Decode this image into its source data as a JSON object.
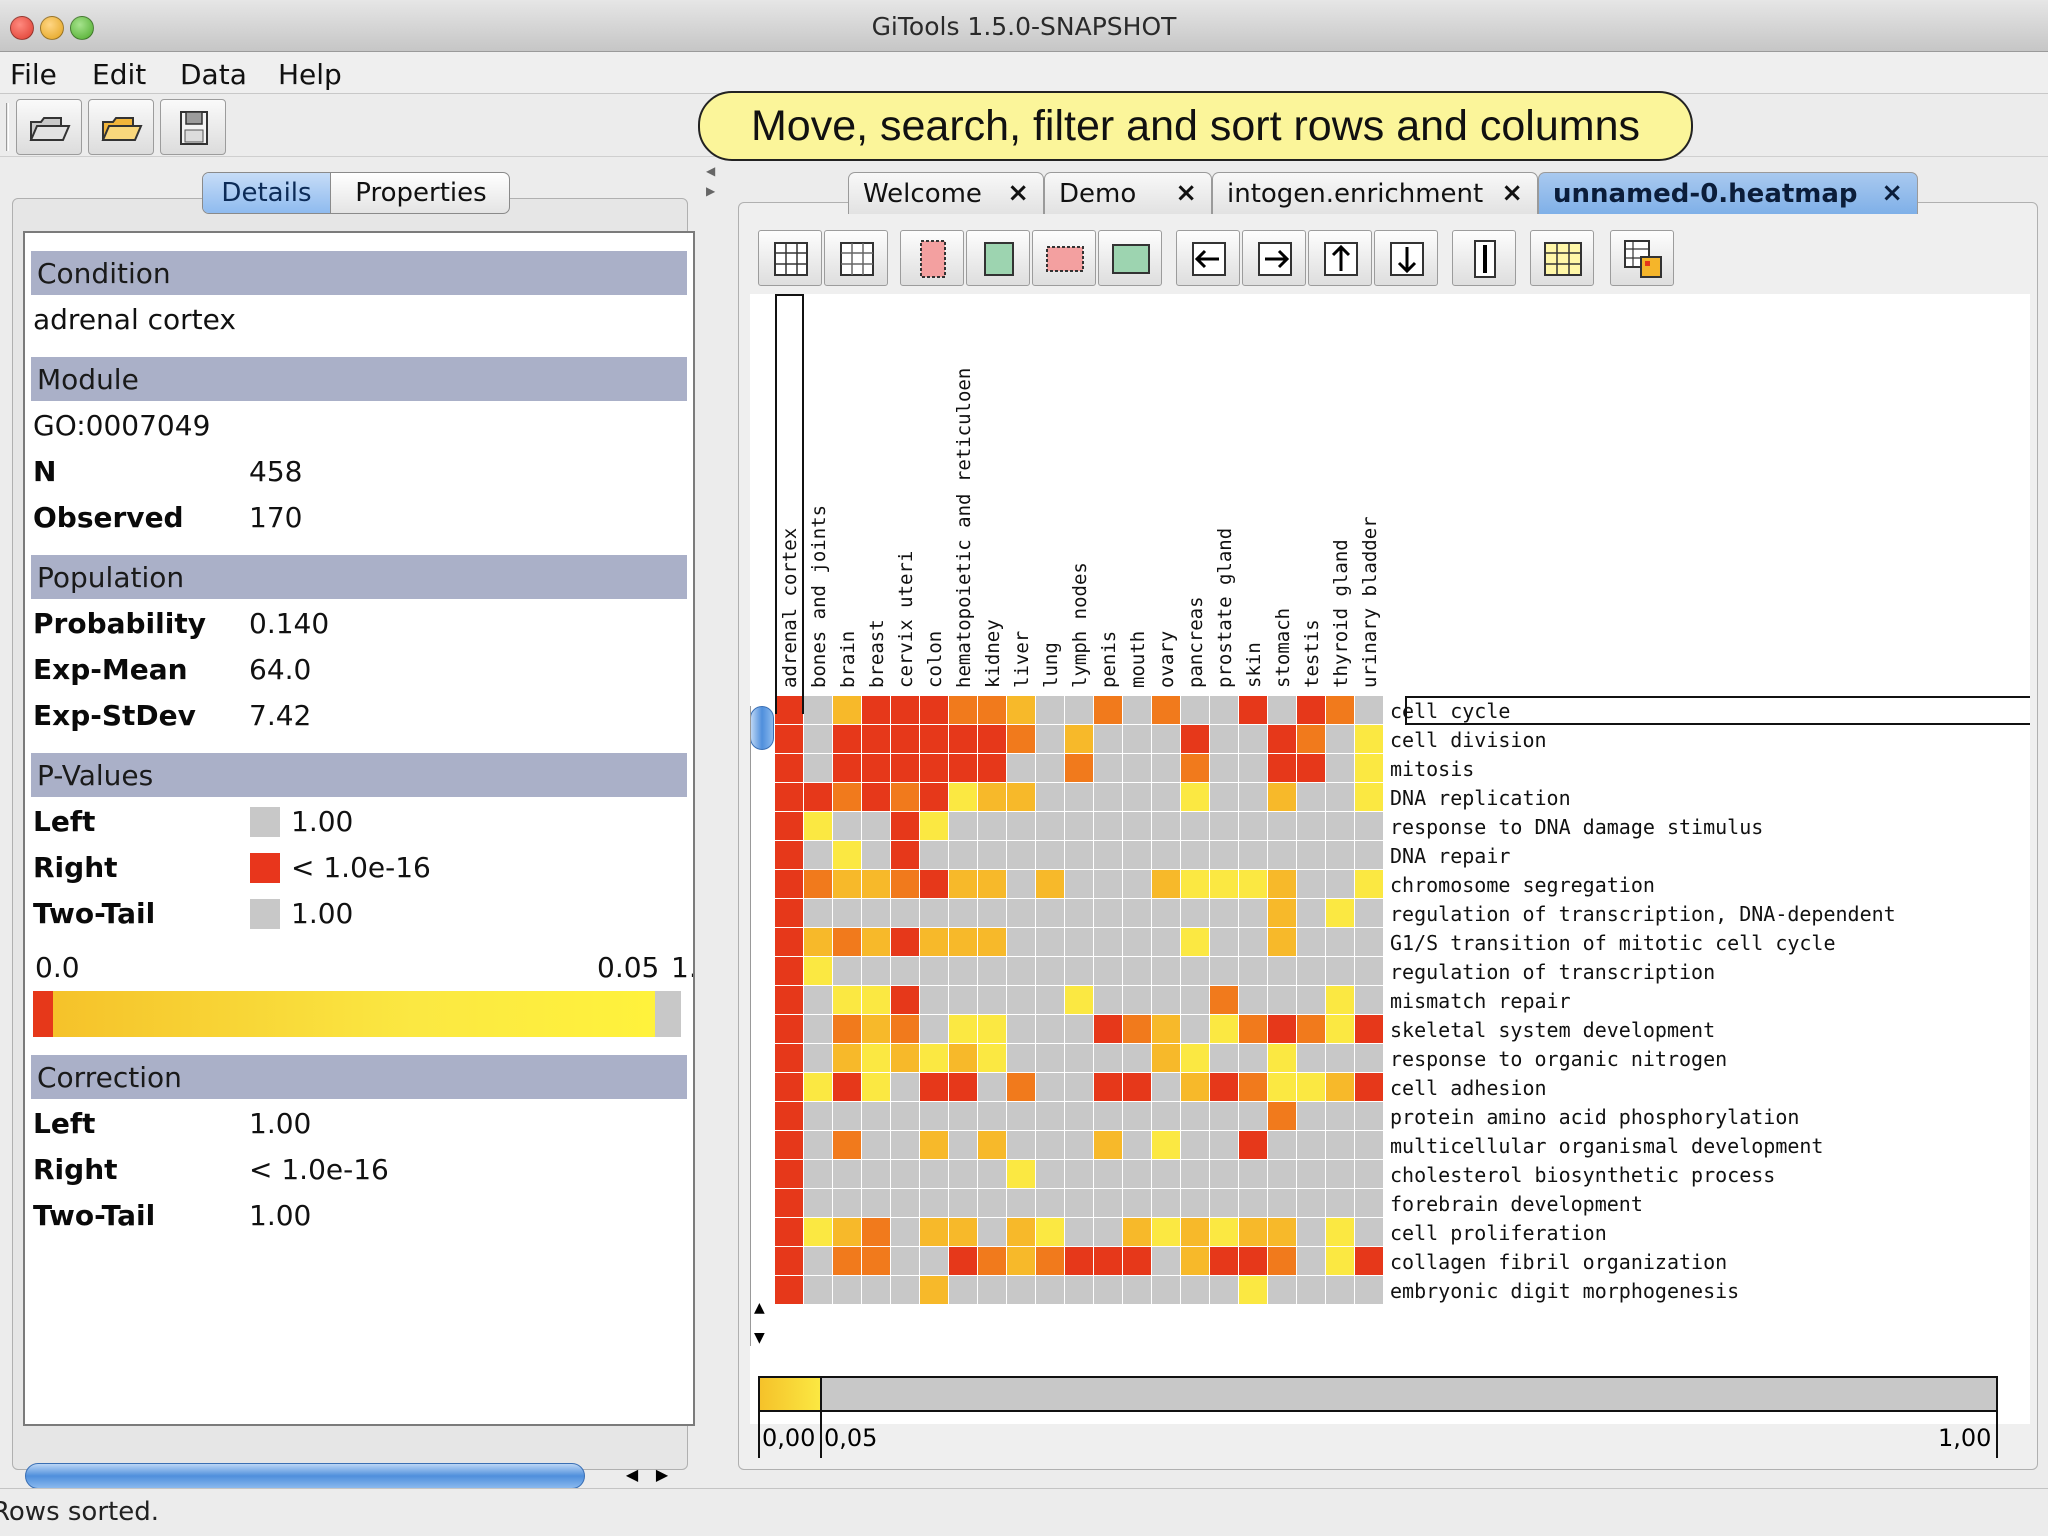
{
  "window": {
    "title": "GiTools 1.5.0-SNAPSHOT"
  },
  "menu": [
    "File",
    "Edit",
    "Data",
    "Help"
  ],
  "callout": "Move, search, filter and sort rows and columns",
  "left_tabs": {
    "details": "Details",
    "properties": "Properties",
    "selected": "Details"
  },
  "details": {
    "condition_header": "Condition",
    "condition_value": "adrenal cortex",
    "module_header": "Module",
    "module_value": "GO:0007049",
    "module_props": [
      {
        "label": "N",
        "value": "458"
      },
      {
        "label": "Observed",
        "value": "170"
      }
    ],
    "population_header": "Population",
    "population_props": [
      {
        "label": "Probability",
        "value": "0.140"
      },
      {
        "label": "Exp-Mean",
        "value": "64.0"
      },
      {
        "label": "Exp-StDev",
        "value": "7.42"
      }
    ],
    "pvalues_header": "P-Values",
    "pvalues_props": [
      {
        "label": "Left",
        "value": "1.00",
        "swatch": "#c8c8c8"
      },
      {
        "label": "Right",
        "value": "< 1.0e-16",
        "swatch": "#e8361c"
      },
      {
        "label": "Two-Tail",
        "value": "1.00",
        "swatch": "#c8c8c8"
      }
    ],
    "scale_min": "0.0",
    "scale_mid": "0.05",
    "scale_max": "1.",
    "correction_header": "Correction",
    "correction_props": [
      {
        "label": "Left",
        "value": "1.00"
      },
      {
        "label": "Right",
        "value": "< 1.0e-16"
      },
      {
        "label": "Two-Tail",
        "value": "1.00"
      }
    ]
  },
  "tabs": [
    {
      "label": "Welcome",
      "active": false
    },
    {
      "label": "Demo",
      "active": false
    },
    {
      "label": "intogen.enrichment",
      "active": false
    },
    {
      "label": "unnamed-0.heatmap",
      "active": true
    }
  ],
  "tab_close": "×",
  "heatmap": {
    "columns": [
      "adrenal cortex",
      "bones and joints",
      "brain",
      "breast",
      "cervix uteri",
      "colon",
      "hematopoietic and reticuloen",
      "kidney",
      "liver",
      "lung",
      "lymph nodes",
      "penis",
      "mouth",
      "ovary",
      "pancreas",
      "prostate gland",
      "skin",
      "stomach",
      "testis",
      "thyroid gland",
      "urinary bladder"
    ],
    "rows": [
      "cell cycle",
      "cell division",
      "mitosis",
      "DNA replication",
      "response to DNA damage stimulus",
      "DNA repair",
      "chromosome segregation",
      "regulation of transcription, DNA-dependent",
      "G1/S transition of mitotic cell cycle",
      "regulation of transcription",
      "mismatch repair",
      "skeletal system development",
      "response to organic nitrogen",
      "cell adhesion",
      "protein amino acid phosphorylation",
      "multicellular organismal development",
      "cholesterol biosynthetic process",
      "forebrain development",
      "cell proliferation",
      "collagen fibril organization",
      "embryonic digit morphogenesis"
    ],
    "palette": {
      "0": "#c8c8c8",
      "1": "#fbe842",
      "2": "#f7b92a",
      "3": "#f17a1c",
      "4": "#e6381a"
    },
    "values": [
      "402444332003030040430",
      "404444443020004004301",
      "404444440030003004401",
      "443434122000001002001",
      "410041000000000000000",
      "401040000000000000000",
      "432234220200021112001",
      "400000000000000002010",
      "423242220000001002000",
      "410000000000000000000",
      "401140000010000300010",
      "403230110004320134314",
      "402121210000021001000",
      "414104403004402431124",
      "400000000000000003000",
      "403002020002010040000",
      "400000001000000000000",
      "400000000000000000000",
      "412302202100212122010",
      "403300432344402443014",
      "400002000000000010000"
    ],
    "legend_min": "0,00",
    "legend_mid": "0,05",
    "legend_max": "1,00"
  },
  "colors": {
    "accent": "#7fb0e8",
    "section_header": "#aab0c8",
    "callout": "#fbf59a"
  },
  "status": "Rows sorted."
}
